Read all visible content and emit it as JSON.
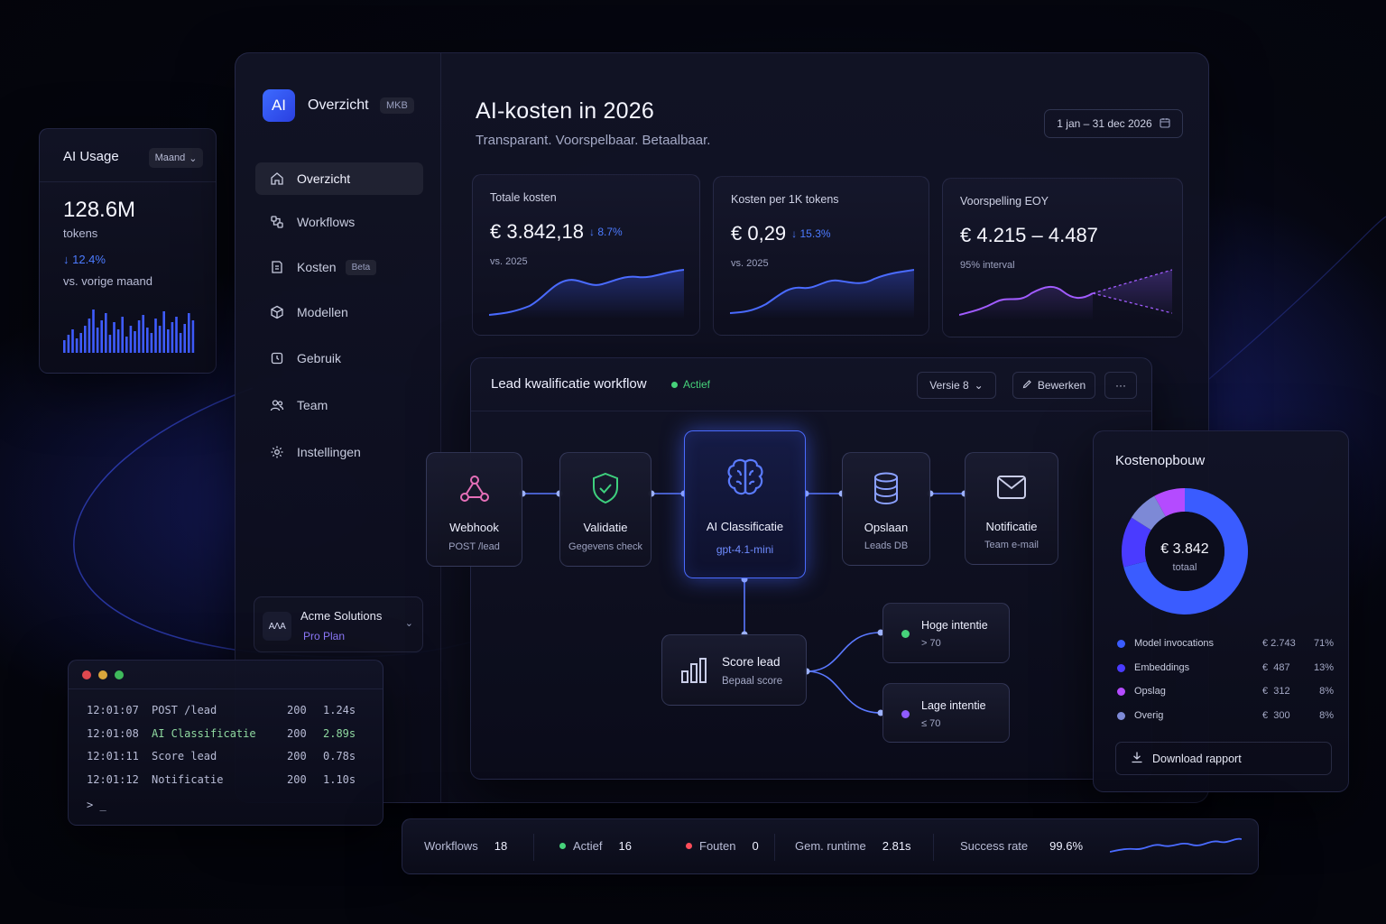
{
  "colors": {
    "accent": "#4a6bff",
    "purple": "#8f5bff",
    "green": "#46d27a",
    "red": "#ff4d5a"
  },
  "usage": {
    "title": "AI Usage",
    "period": "Maand",
    "value": "128.6M",
    "unit": "tokens",
    "delta": "↓ 12.4%",
    "comparison": "vs. vorige maand"
  },
  "sidebar": {
    "logo": "AI",
    "title": "Overzicht",
    "badge": "MKB",
    "items": [
      {
        "label": "Overzicht",
        "icon": "home-icon"
      },
      {
        "label": "Workflows",
        "icon": "workflow-icon"
      },
      {
        "label": "Kosten",
        "icon": "cost-icon",
        "badge": "Beta"
      },
      {
        "label": "Modellen",
        "icon": "cube-icon"
      },
      {
        "label": "Gebruik",
        "icon": "usage-icon"
      },
      {
        "label": "Team",
        "icon": "team-icon"
      },
      {
        "label": "Instellingen",
        "icon": "gear-icon"
      }
    ],
    "org": {
      "logo": "AΛA",
      "name": "Acme Solutions",
      "plan": "Pro Plan"
    }
  },
  "header": {
    "title": "AI-kosten in 2026",
    "subtitle": "Transparant. Voorspelbaar. Betaalbaar.",
    "date_range": "1 jan – 31 dec 2026"
  },
  "kpis": [
    {
      "label": "Totale kosten",
      "value": "€ 3.842,18",
      "delta": "↓ 8.7%",
      "sub": "vs. 2025"
    },
    {
      "label": "Kosten per 1K tokens",
      "value": "€ 0,29",
      "delta": "↓ 15.3%",
      "sub": "vs. 2025"
    },
    {
      "label": "Voorspelling EOY",
      "value": "€ 4.215 – 4.487",
      "delta": "",
      "sub": "95% interval"
    }
  ],
  "workflow": {
    "title": "Lead kwalificatie workflow",
    "status": "Actief",
    "version": "Versie 8",
    "edit": "Bewerken",
    "more": "···",
    "nodes": [
      {
        "title": "Webhook",
        "sub": "POST /lead",
        "icon": "webhook-icon"
      },
      {
        "title": "Validatie",
        "sub": "Gegevens check",
        "icon": "shield-check-icon"
      },
      {
        "title": "AI Classificatie",
        "sub": "gpt-4.1-mini",
        "icon": "brain-icon"
      },
      {
        "title": "Opslaan",
        "sub": "Leads DB",
        "icon": "database-icon"
      },
      {
        "title": "Notificatie",
        "sub": "Team e-mail",
        "icon": "mail-icon"
      }
    ],
    "score": {
      "title": "Score lead",
      "sub": "Bepaal score",
      "icon": "bar-chart-icon"
    },
    "branches": [
      {
        "title": "Hoge intentie",
        "sub": "> 70",
        "color": "#46d27a"
      },
      {
        "title": "Lage intentie",
        "sub": "≤ 70",
        "color": "#8f5bff"
      }
    ]
  },
  "terminal": {
    "rows": [
      {
        "time": "12:01:07",
        "event": "POST /lead",
        "code": "200",
        "duration": "1.24s",
        "highlight": false
      },
      {
        "time": "12:01:08",
        "event": "AI Classificatie",
        "code": "200",
        "duration": "2.89s",
        "highlight": true
      },
      {
        "time": "12:01:11",
        "event": "Score lead",
        "code": "200",
        "duration": "0.78s",
        "highlight": false
      },
      {
        "time": "12:01:12",
        "event": "Notificatie",
        "code": "200",
        "duration": "1.10s",
        "highlight": false
      }
    ],
    "prompt": "> _"
  },
  "cost_breakdown": {
    "title": "Kostenopbouw",
    "total": "€ 3.842",
    "total_label": "totaal",
    "items": [
      {
        "name": "Model invocations",
        "amount": "€ 2.743",
        "pct": "71%",
        "share": 71,
        "color": "#3a5cff"
      },
      {
        "name": "Embeddings",
        "amount": "€  487",
        "pct": "13%",
        "share": 13,
        "color": "#4a3bff"
      },
      {
        "name": "Opslag",
        "amount": "€  312",
        "pct": "8%",
        "share": 8,
        "color": "#b44bff"
      },
      {
        "name": "Overig",
        "amount": "€  300",
        "pct": "8%",
        "share": 8,
        "color": "#7d89d6"
      }
    ],
    "download": "Download rapport"
  },
  "status_bar": {
    "workflows_label": "Workflows",
    "workflows": "18",
    "active_label": "Actief",
    "active": "16",
    "errors_label": "Fouten",
    "errors": "0",
    "runtime_label": "Gem. runtime",
    "runtime": "2.81s",
    "success_label": "Success rate",
    "success": "99.6%"
  }
}
